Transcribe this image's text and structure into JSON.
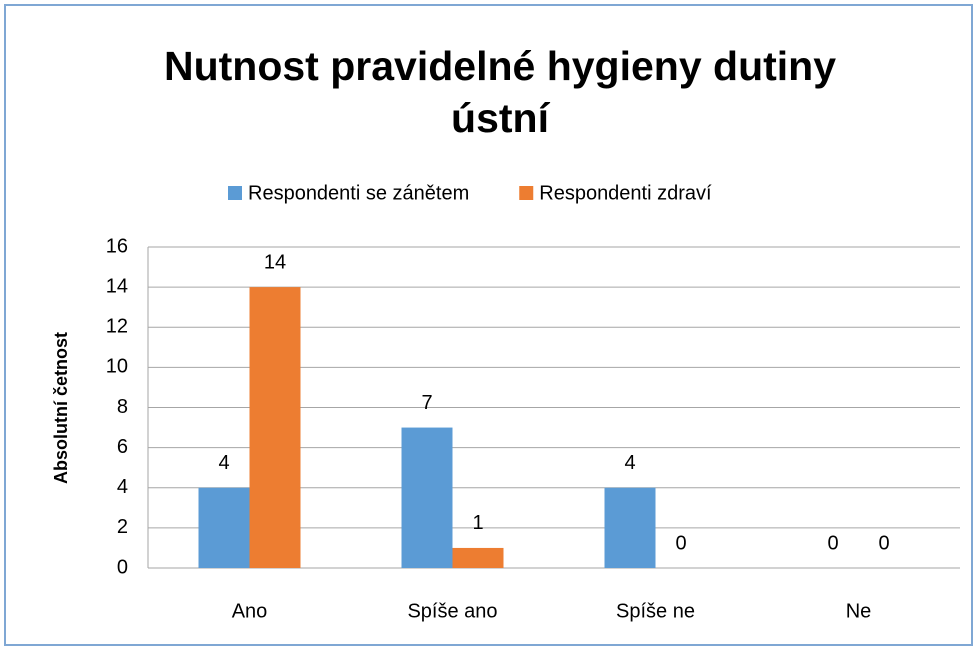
{
  "chart_data": {
    "type": "bar",
    "title": "Nutnost pravidelné hygieny dutiny ústní",
    "y_label": "Absolutní četnost",
    "categories": [
      "Ano",
      "Spíše ano",
      "Spíše ne",
      "Ne"
    ],
    "series": [
      {
        "name": "Respondenti se zánětem",
        "color": "#5b9bd5",
        "values": [
          4,
          7,
          4,
          0
        ]
      },
      {
        "name": "Respondenti zdraví",
        "color": "#ed7d31",
        "values": [
          14,
          1,
          0,
          0
        ]
      }
    ],
    "ylim": [
      0,
      16
    ],
    "yticks": [
      0,
      2,
      4,
      6,
      8,
      10,
      12,
      14,
      16
    ],
    "grid": true,
    "legend": "top"
  }
}
